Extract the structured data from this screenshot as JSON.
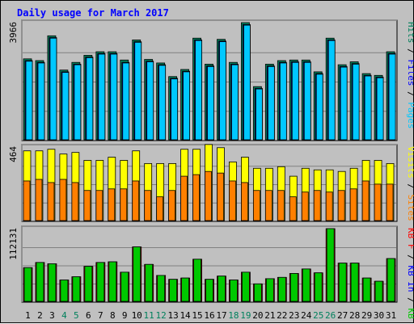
{
  "chart_data": {
    "title": "Daily usage for March 2017",
    "type": "bar",
    "colors": {
      "hits": "#00805c",
      "files": "#0000ff",
      "pages": "#00c8ff",
      "visits": "#ffff00",
      "sites": "#ff8000",
      "kbout": "#00c800",
      "kbin": "#0000ff",
      "kbf": "#ff0000",
      "title": "#0000ff",
      "weekday": "#000000",
      "weekend": "#00805c",
      "grid": "#808080"
    },
    "days": [
      {
        "label": "1",
        "weekend": false
      },
      {
        "label": "2",
        "weekend": false
      },
      {
        "label": "3",
        "weekend": false
      },
      {
        "label": "4",
        "weekend": true
      },
      {
        "label": "5",
        "weekend": true
      },
      {
        "label": "6",
        "weekend": false
      },
      {
        "label": "7",
        "weekend": false
      },
      {
        "label": "8",
        "weekend": false
      },
      {
        "label": "9",
        "weekend": false
      },
      {
        "label": "10",
        "weekend": false
      },
      {
        "label": "11",
        "weekend": true
      },
      {
        "label": "12",
        "weekend": true
      },
      {
        "label": "13",
        "weekend": false
      },
      {
        "label": "14",
        "weekend": false
      },
      {
        "label": "15",
        "weekend": false
      },
      {
        "label": "16",
        "weekend": false
      },
      {
        "label": "17",
        "weekend": false
      },
      {
        "label": "18",
        "weekend": true
      },
      {
        "label": "19",
        "weekend": true
      },
      {
        "label": "20",
        "weekend": false
      },
      {
        "label": "21",
        "weekend": false
      },
      {
        "label": "22",
        "weekend": false
      },
      {
        "label": "23",
        "weekend": false
      },
      {
        "label": "24",
        "weekend": false
      },
      {
        "label": "25",
        "weekend": true
      },
      {
        "label": "26",
        "weekend": true
      },
      {
        "label": "27",
        "weekend": false
      },
      {
        "label": "28",
        "weekend": false
      },
      {
        "label": "29",
        "weekend": false
      },
      {
        "label": "30",
        "weekend": false
      },
      {
        "label": "31",
        "weekend": false
      }
    ],
    "top": {
      "max_label": "3966",
      "ymax": 3966,
      "legend": [
        {
          "text": "Hits",
          "key": "hits"
        },
        {
          "text": "/",
          "key": "weekday"
        },
        {
          "text": "Files",
          "key": "files"
        },
        {
          "text": "/",
          "key": "weekday"
        },
        {
          "text": "Pages",
          "key": "pages"
        }
      ],
      "series": [
        {
          "name": "Hits",
          "key": "hits",
          "values": [
            2740,
            2680,
            3520,
            2360,
            2620,
            2860,
            2980,
            2980,
            2700,
            3380,
            2720,
            2600,
            2140,
            2380,
            3440,
            2560,
            3400,
            2620,
            3966,
            1800,
            2560,
            2680,
            2700,
            2700,
            2300,
            3440,
            2540,
            2640,
            2240,
            2180,
            2980
          ]
        },
        {
          "name": "Files",
          "key": "files",
          "values": [
            2680,
            2620,
            3460,
            2300,
            2560,
            2800,
            2920,
            2920,
            2620,
            3320,
            2660,
            2540,
            2080,
            2320,
            3380,
            2500,
            3340,
            2560,
            3900,
            1740,
            2500,
            2620,
            2640,
            2640,
            2240,
            3380,
            2480,
            2580,
            2180,
            2120,
            2920
          ]
        },
        {
          "name": "Pages",
          "key": "pages",
          "values": [
            2660,
            2600,
            3440,
            2280,
            2540,
            2780,
            2900,
            2900,
            2600,
            3300,
            2640,
            2520,
            2060,
            2300,
            3360,
            2480,
            3320,
            2540,
            3880,
            1720,
            2480,
            2600,
            2620,
            2620,
            2220,
            3360,
            2460,
            2560,
            2160,
            2100,
            2900
          ]
        }
      ]
    },
    "middle": {
      "max_label": "464",
      "ymax": 464,
      "legend": [
        {
          "text": "Visits",
          "key": "visits"
        },
        {
          "text": "/",
          "key": "weekday"
        },
        {
          "text": "Sites",
          "key": "sites"
        }
      ],
      "series": [
        {
          "name": "Visits",
          "key": "visits",
          "values": [
            440,
            440,
            450,
            420,
            430,
            380,
            380,
            400,
            380,
            440,
            360,
            360,
            360,
            450,
            450,
            480,
            460,
            370,
            400,
            330,
            330,
            340,
            280,
            330,
            320,
            320,
            310,
            330,
            380,
            380,
            360
          ]
        },
        {
          "name": "Sites",
          "key": "sites",
          "values": [
            250,
            260,
            240,
            260,
            240,
            190,
            190,
            200,
            200,
            250,
            190,
            150,
            190,
            280,
            290,
            310,
            300,
            250,
            240,
            190,
            190,
            190,
            150,
            180,
            190,
            180,
            190,
            200,
            250,
            230,
            230
          ]
        }
      ]
    },
    "bottom": {
      "max_label": "112131",
      "ymax": 112131,
      "legend": [
        {
          "text": "KB F",
          "key": "kbf"
        },
        {
          "text": "/",
          "key": "weekday"
        },
        {
          "text": "KB In",
          "key": "kbin"
        },
        {
          "text": "/",
          "key": "weekday"
        },
        {
          "text": "KB Out",
          "key": "kbout"
        }
      ],
      "series": [
        {
          "name": "KB F",
          "key": "kbf",
          "values": [
            52000,
            60000,
            58000,
            33000,
            38000,
            54000,
            60000,
            61000,
            45000,
            84000,
            57000,
            40000,
            34000,
            36000,
            65000,
            34000,
            39000,
            33000,
            45000,
            27000,
            35000,
            37000,
            43000,
            50000,
            44000,
            112131,
            59000,
            59000,
            36000,
            31000,
            66000
          ]
        },
        {
          "name": "KB Out",
          "key": "kbout",
          "values": [
            52000,
            60000,
            58000,
            33000,
            38000,
            54000,
            60000,
            61000,
            45000,
            84000,
            57000,
            40000,
            34000,
            36000,
            65000,
            34000,
            39000,
            33000,
            45000,
            27000,
            35000,
            37000,
            43000,
            50000,
            44000,
            112131,
            59000,
            59000,
            36000,
            31000,
            66000
          ]
        }
      ]
    }
  }
}
